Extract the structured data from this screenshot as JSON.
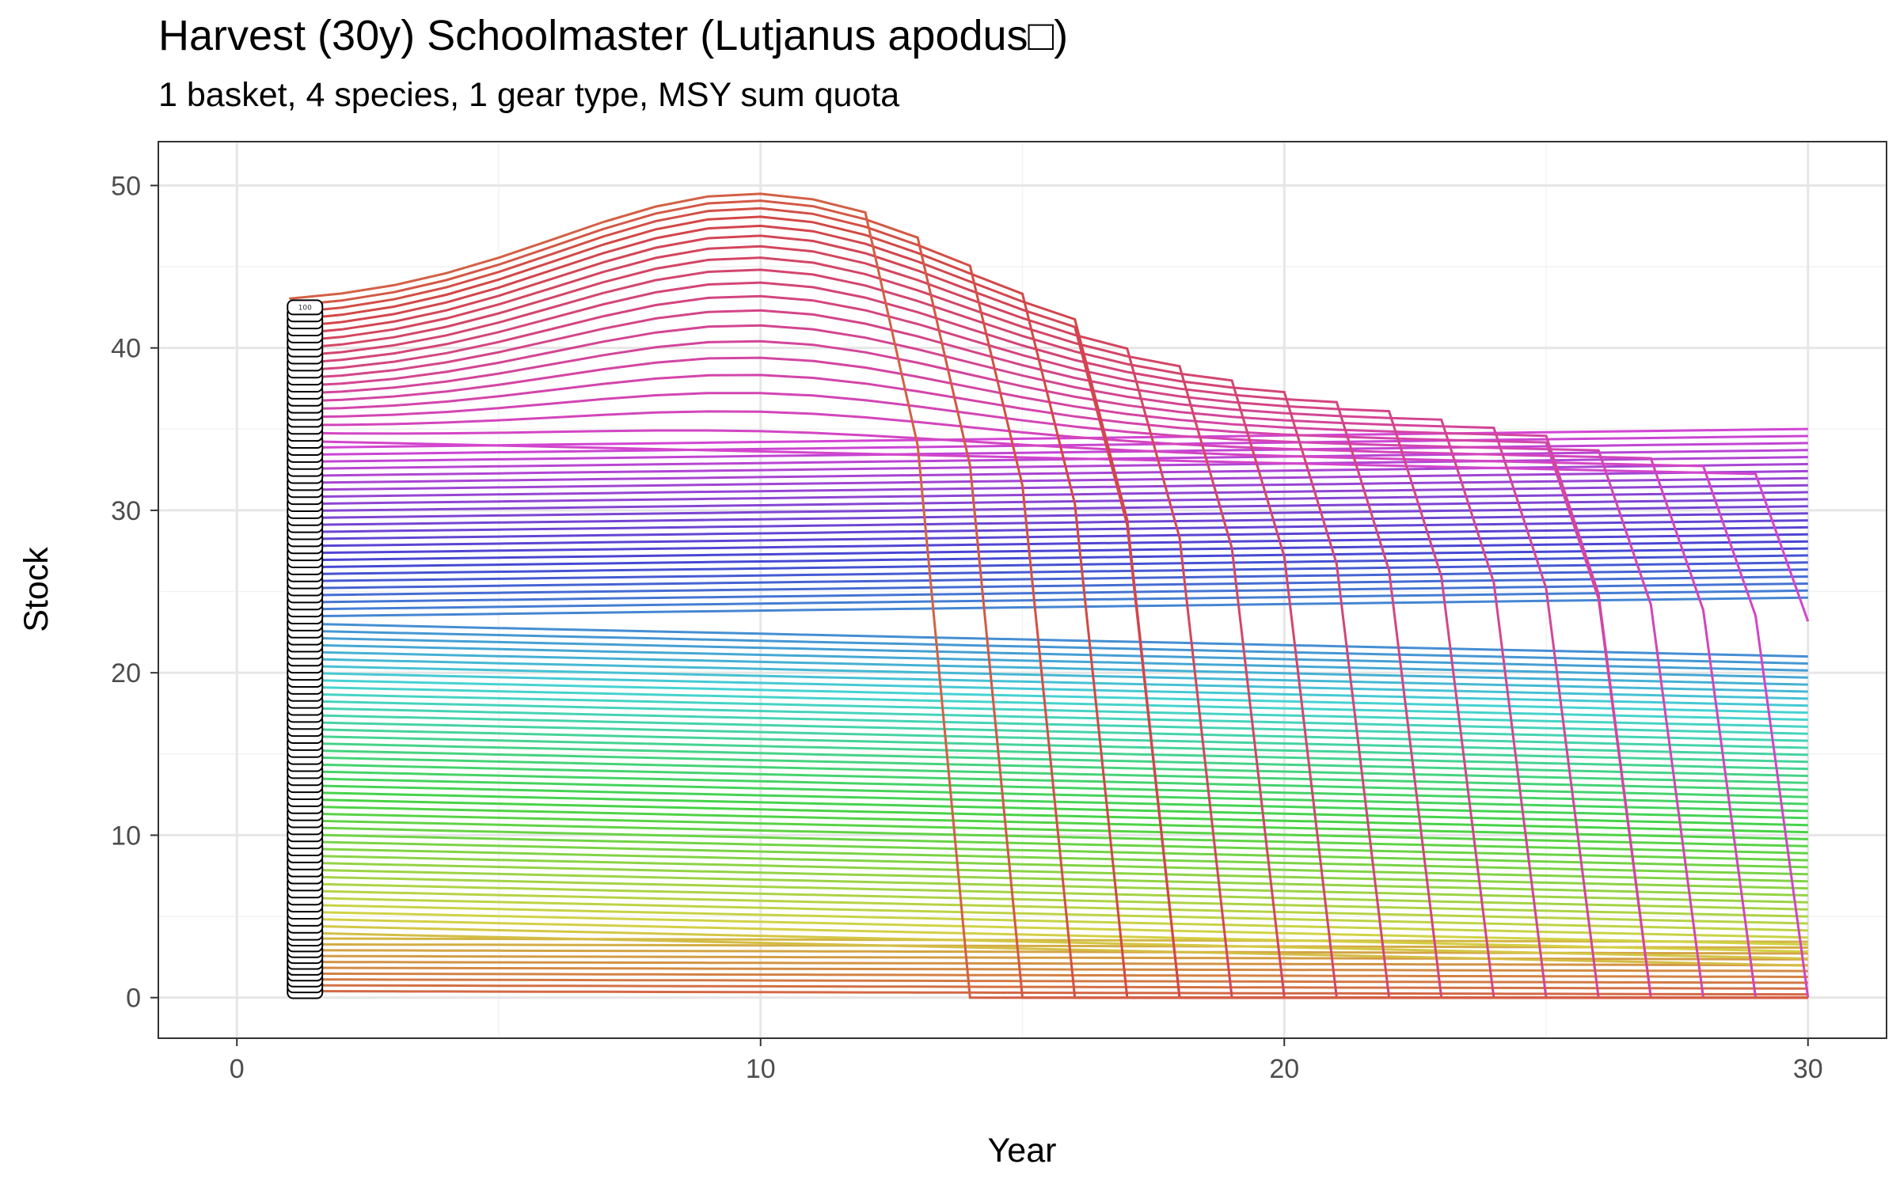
{
  "chart_data": {
    "type": "line",
    "title": "Harvest (30y) Schoolmaster (Lutjanus apodus□)",
    "subtitle": "1 basket, 4 species, 1 gear type, MSY sum quota",
    "xlabel": "Year",
    "ylabel": "Stock",
    "xlim": [
      -1.5,
      31.5
    ],
    "ylim": [
      -2.5,
      52.7
    ],
    "x_ticks": [
      0,
      10,
      20,
      30
    ],
    "y_ticks": [
      0,
      10,
      20,
      30,
      40,
      50
    ],
    "grid": true,
    "legend": "none",
    "series_count": 100,
    "label_column": {
      "x": 1.3,
      "top_label": "100",
      "label_count": 100
    },
    "series_generator": {
      "x_start": 1,
      "x_end": 30,
      "start_stock_min": 0.4,
      "start_stock_max": 42.5,
      "peak_stock": 50.3,
      "peak_year": 10,
      "collapse_start_year": [
        12,
        29
      ],
      "collapse_end_year": [
        14,
        30
      ],
      "final_stock_range": [
        0,
        39.8
      ]
    },
    "sample_series": [
      {
        "name": "1",
        "x": [
          1,
          30
        ],
        "y": [
          0.4,
          0.4
        ]
      },
      {
        "name": "30",
        "x": [
          1,
          30
        ],
        "y": [
          9.5,
          7.8
        ]
      },
      {
        "name": "60",
        "x": [
          1,
          30
        ],
        "y": [
          22.0,
          20.0
        ]
      },
      {
        "name": "80",
        "x": [
          1,
          30
        ],
        "y": [
          30.0,
          31.0
        ]
      },
      {
        "name": "100",
        "x": [
          1,
          4,
          7,
          10,
          11,
          12,
          13,
          14
        ],
        "y": [
          42.5,
          44.5,
          48.5,
          50.3,
          49.8,
          47.0,
          41.5,
          0
        ]
      }
    ]
  }
}
